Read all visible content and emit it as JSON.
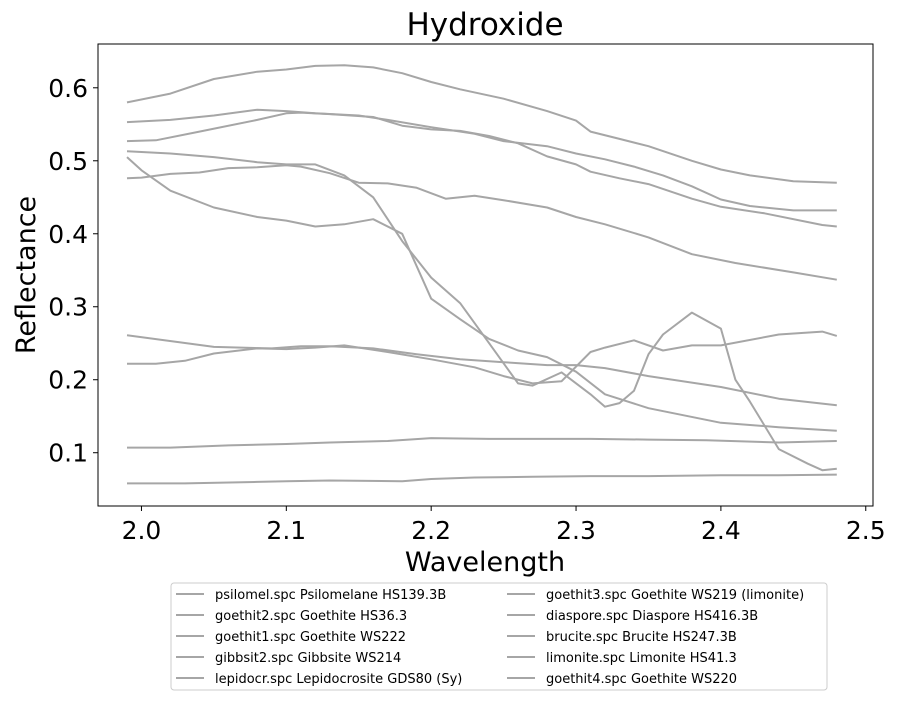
{
  "chart_data": {
    "type": "line",
    "title": "Hydroxide",
    "xlabel": "Wavelength",
    "ylabel": "Reflectance",
    "xlim": [
      1.97,
      2.505
    ],
    "ylim": [
      0.027,
      0.66
    ],
    "xticks": [
      "2.0",
      "2.1",
      "2.2",
      "2.3",
      "2.4",
      "2.5"
    ],
    "yticks": [
      "0.1",
      "0.2",
      "0.3",
      "0.4",
      "0.5",
      "0.6"
    ],
    "grid": false,
    "legend_position": "below",
    "line_color": "#a6a6a6",
    "series": [
      {
        "name": "psilomel.spc Psilomelane HS139.3B",
        "x": [
          1.99,
          2.03,
          2.08,
          2.1,
          2.13,
          2.18,
          2.2,
          2.23,
          2.27,
          2.31,
          2.35,
          2.4,
          2.44,
          2.48
        ],
        "y": [
          0.058,
          0.058,
          0.06,
          0.061,
          0.062,
          0.061,
          0.064,
          0.066,
          0.067,
          0.068,
          0.068,
          0.069,
          0.069,
          0.07
        ]
      },
      {
        "name": "goethit2.spc Goethite HS36.3",
        "x": [
          1.99,
          2.02,
          2.06,
          2.1,
          2.13,
          2.17,
          2.2,
          2.24,
          2.28,
          2.31,
          2.35,
          2.39,
          2.44,
          2.48
        ],
        "y": [
          0.107,
          0.107,
          0.11,
          0.112,
          0.114,
          0.116,
          0.12,
          0.119,
          0.119,
          0.119,
          0.118,
          0.117,
          0.114,
          0.116
        ]
      },
      {
        "name": "goethit1.spc Goethite WS222",
        "x": [
          1.99,
          2.05,
          2.09,
          2.11,
          2.13,
          2.16,
          2.19,
          2.22,
          2.25,
          2.28,
          2.3,
          2.32,
          2.35,
          2.4,
          2.44,
          2.48
        ],
        "y": [
          0.261,
          0.245,
          0.243,
          0.246,
          0.246,
          0.243,
          0.235,
          0.228,
          0.224,
          0.22,
          0.22,
          0.216,
          0.205,
          0.19,
          0.174,
          0.165
        ]
      },
      {
        "name": "gibbsit2.spc Gibbsite WS214",
        "x": [
          1.99,
          2.01,
          2.03,
          2.05,
          2.08,
          2.1,
          2.12,
          2.14,
          2.17,
          2.2,
          2.23,
          2.25,
          2.27,
          2.29,
          2.31,
          2.32,
          2.34,
          2.36,
          2.38,
          2.4,
          2.44,
          2.47,
          2.48
        ],
        "y": [
          0.222,
          0.222,
          0.226,
          0.236,
          0.243,
          0.242,
          0.244,
          0.247,
          0.238,
          0.228,
          0.217,
          0.205,
          0.195,
          0.198,
          0.238,
          0.244,
          0.254,
          0.24,
          0.247,
          0.247,
          0.262,
          0.266,
          0.26
        ]
      },
      {
        "name": "lepidocr.spc Lepidocrosite GDS80 (Sy)",
        "x": [
          1.99,
          2.0,
          2.02,
          2.04,
          2.06,
          2.08,
          2.1,
          2.11,
          2.13,
          2.15,
          2.17,
          2.19,
          2.21,
          2.23,
          2.25,
          2.28,
          2.3,
          2.32,
          2.35,
          2.38,
          2.41,
          2.45,
          2.48
        ],
        "y": [
          0.476,
          0.477,
          0.482,
          0.484,
          0.49,
          0.491,
          0.494,
          0.492,
          0.483,
          0.47,
          0.469,
          0.463,
          0.448,
          0.452,
          0.446,
          0.436,
          0.423,
          0.413,
          0.395,
          0.372,
          0.36,
          0.347,
          0.337
        ]
      },
      {
        "name": "goethit3.spc Goethite WS219 (limonite)",
        "x": [
          1.99,
          2.0,
          2.02,
          2.05,
          2.08,
          2.1,
          2.12,
          2.14,
          2.16,
          2.18,
          2.2,
          2.22,
          2.24,
          2.26,
          2.28,
          2.3,
          2.32,
          2.35,
          2.4,
          2.44,
          2.48
        ],
        "y": [
          0.505,
          0.487,
          0.459,
          0.436,
          0.423,
          0.418,
          0.41,
          0.413,
          0.42,
          0.4,
          0.311,
          0.283,
          0.256,
          0.24,
          0.231,
          0.211,
          0.18,
          0.161,
          0.141,
          0.135,
          0.13
        ]
      },
      {
        "name": "diaspore.spc Diaspore HS416.3B",
        "x": [
          1.99,
          2.01,
          2.04,
          2.08,
          2.1,
          2.11,
          2.13,
          2.16,
          2.18,
          2.2,
          2.22,
          2.24,
          2.26,
          2.28,
          2.3,
          2.31,
          2.33,
          2.35,
          2.38,
          2.4,
          2.43,
          2.47,
          2.48
        ],
        "y": [
          0.527,
          0.528,
          0.54,
          0.556,
          0.565,
          0.566,
          0.564,
          0.56,
          0.548,
          0.543,
          0.541,
          0.534,
          0.524,
          0.506,
          0.495,
          0.485,
          0.476,
          0.468,
          0.448,
          0.437,
          0.428,
          0.412,
          0.41
        ]
      },
      {
        "name": "brucite.spc Brucite HS247.3B",
        "x": [
          1.99,
          2.02,
          2.05,
          2.08,
          2.1,
          2.12,
          2.14,
          2.16,
          2.18,
          2.2,
          2.22,
          2.24,
          2.26,
          2.27,
          2.29,
          2.31,
          2.32,
          2.33,
          2.34,
          2.35,
          2.36,
          2.38,
          2.4,
          2.41,
          2.42,
          2.44,
          2.46,
          2.47,
          2.48
        ],
        "y": [
          0.513,
          0.51,
          0.505,
          0.498,
          0.495,
          0.495,
          0.48,
          0.45,
          0.39,
          0.34,
          0.305,
          0.25,
          0.195,
          0.192,
          0.21,
          0.18,
          0.163,
          0.168,
          0.185,
          0.235,
          0.262,
          0.292,
          0.27,
          0.2,
          0.17,
          0.105,
          0.085,
          0.076,
          0.078
        ]
      },
      {
        "name": "limonite.spc Limonite HS41.3",
        "x": [
          1.99,
          2.02,
          2.05,
          2.08,
          2.1,
          2.12,
          2.15,
          2.17,
          2.2,
          2.23,
          2.25,
          2.28,
          2.3,
          2.32,
          2.34,
          2.36,
          2.38,
          2.4,
          2.42,
          2.45,
          2.48
        ],
        "y": [
          0.553,
          0.556,
          0.562,
          0.57,
          0.568,
          0.565,
          0.562,
          0.556,
          0.546,
          0.537,
          0.527,
          0.52,
          0.51,
          0.502,
          0.492,
          0.48,
          0.465,
          0.447,
          0.438,
          0.432,
          0.432
        ]
      },
      {
        "name": "goethit4.spc Goethite WS220",
        "x": [
          1.99,
          2.02,
          2.05,
          2.08,
          2.1,
          2.12,
          2.14,
          2.16,
          2.18,
          2.2,
          2.22,
          2.25,
          2.28,
          2.3,
          2.31,
          2.33,
          2.35,
          2.38,
          2.4,
          2.42,
          2.45,
          2.48
        ],
        "y": [
          0.58,
          0.592,
          0.612,
          0.622,
          0.625,
          0.63,
          0.631,
          0.628,
          0.62,
          0.608,
          0.598,
          0.585,
          0.568,
          0.555,
          0.54,
          0.53,
          0.52,
          0.5,
          0.488,
          0.48,
          0.472,
          0.47
        ]
      }
    ]
  }
}
